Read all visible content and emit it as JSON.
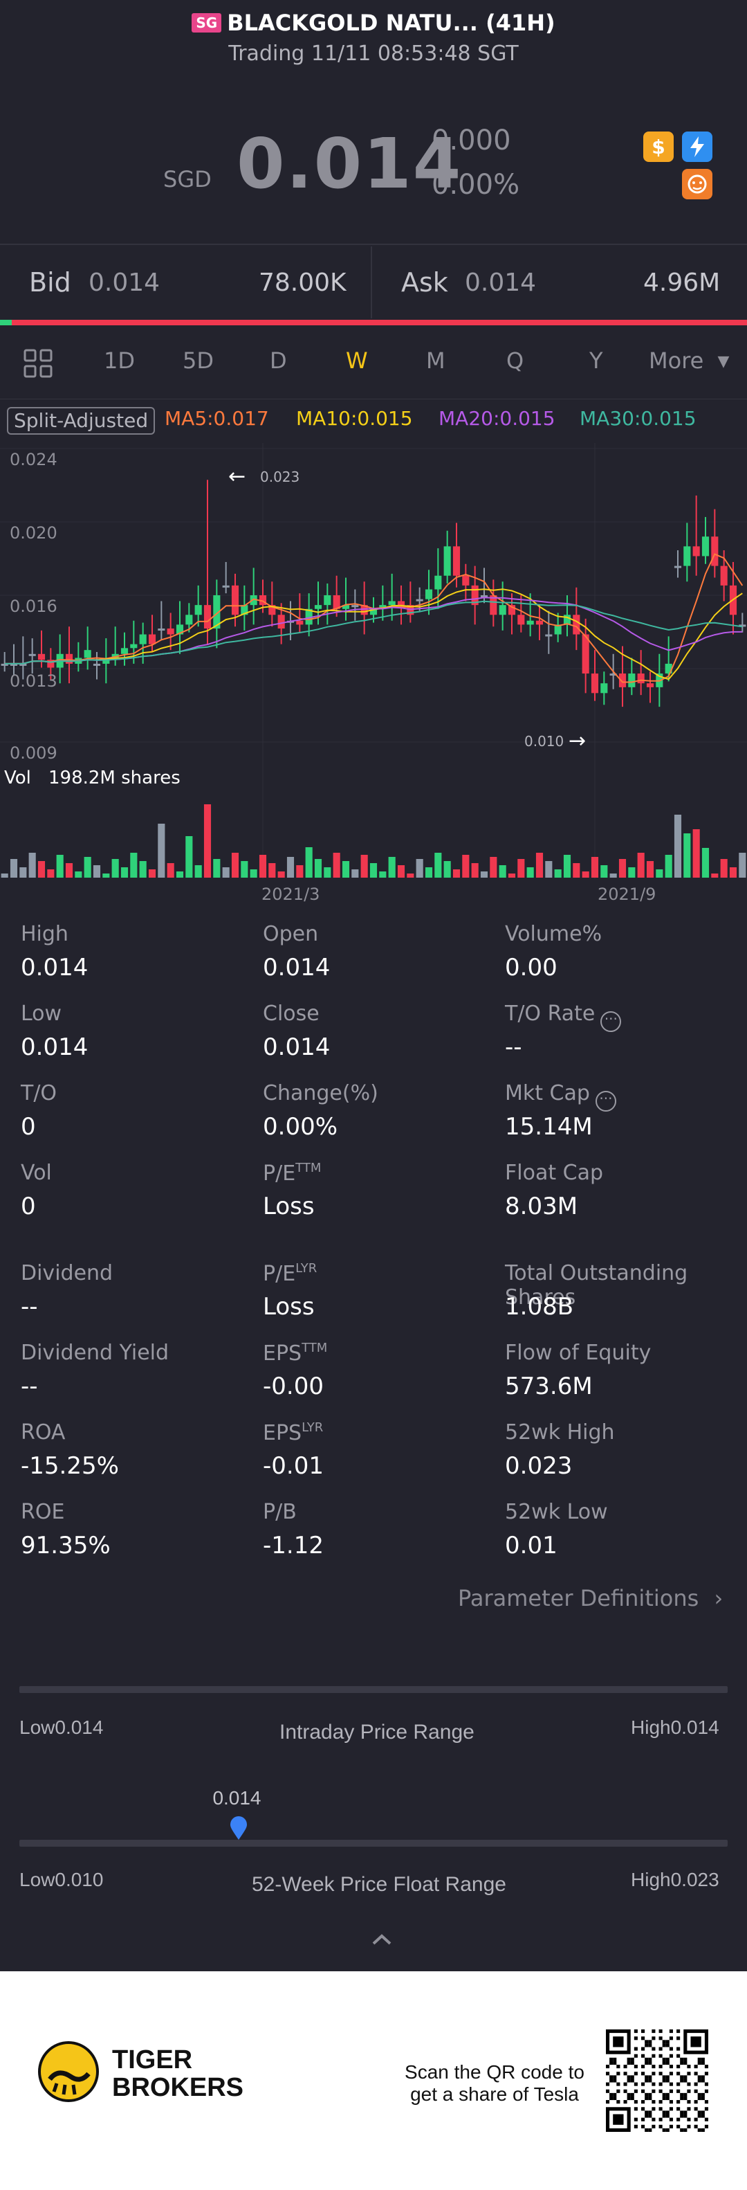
{
  "header": {
    "market_badge": "SG",
    "title": "BLACKGOLD NATU... (41H)",
    "subtitle": "Trading 11/11 08:53:48 SGT"
  },
  "quote": {
    "currency": "SGD",
    "price": "0.014",
    "change": "0.000",
    "change_pct": "0.00%"
  },
  "bid_ask": {
    "bid_label": "Bid",
    "bid_price": "0.014",
    "bid_size": "78.00K",
    "ask_label": "Ask",
    "ask_price": "0.014",
    "ask_size": "4.96M",
    "bid_ratio": 0.016
  },
  "tabs": [
    "1D",
    "5D",
    "D",
    "W",
    "M",
    "Q",
    "Y",
    "More"
  ],
  "active_tab": "W",
  "indicators": {
    "split_label": "Split-Adjusted",
    "ma5": "MA5:0.017",
    "ma10": "MA10:0.015",
    "ma20": "MA20:0.015",
    "ma30": "MA30:0.015",
    "colors": {
      "ma5": "#ff7a3d",
      "ma10": "#f5d018",
      "ma20": "#b65ae8",
      "ma30": "#3fb8a0",
      "up": "#2fd27a",
      "down": "#f0384f",
      "flat": "#8f9aa8"
    }
  },
  "chart_data": {
    "type": "candlestick",
    "y_ticks": [
      "0.024",
      "0.020",
      "0.016",
      "0.013",
      "0.009"
    ],
    "ylim": [
      0.009,
      0.024
    ],
    "max_annotation": "0.023",
    "min_annotation": "0.010",
    "x_ticks": [
      "2021/3",
      "2021/9"
    ],
    "volume_label": "Vol",
    "volume_value": "198.2M shares"
  },
  "stats": {
    "col1": [
      {
        "label": "High",
        "value": "0.014"
      },
      {
        "label": "Low",
        "value": "0.014"
      },
      {
        "label": "T/O",
        "value": "0"
      },
      {
        "label": "Vol",
        "value": "0"
      },
      {
        "label": "Dividend",
        "value": "--"
      },
      {
        "label": "Dividend Yield",
        "value": "--"
      },
      {
        "label": "ROA",
        "value": "-15.25%"
      },
      {
        "label": "ROE",
        "value": "91.35%"
      }
    ],
    "col2": [
      {
        "label": "Open",
        "value": "0.014"
      },
      {
        "label": "Close",
        "value": "0.014"
      },
      {
        "label": "Change(%)",
        "value": "0.00%"
      },
      {
        "label": "P/E",
        "sup": "TTM",
        "value": "Loss"
      },
      {
        "label": "P/E",
        "sup": "LYR",
        "value": "Loss"
      },
      {
        "label": "EPS",
        "sup": "TTM",
        "value": "-0.00"
      },
      {
        "label": "EPS",
        "sup": "LYR",
        "value": "-0.01"
      },
      {
        "label": "P/B",
        "value": "-1.12"
      }
    ],
    "col3": [
      {
        "label": "Volume%",
        "value": "0.00"
      },
      {
        "label": "T/O Rate",
        "value": "--"
      },
      {
        "label": "Mkt Cap",
        "value": "15.14M"
      },
      {
        "label": "Float Cap",
        "value": "8.03M"
      },
      {
        "label": "Total Outstanding Shares",
        "value": "1.08B"
      },
      {
        "label": "Flow of Equity",
        "value": "573.6M"
      },
      {
        "label": "52wk High",
        "value": "0.023"
      },
      {
        "label": "52wk Low",
        "value": "0.01"
      }
    ],
    "param_link": "Parameter Definitions"
  },
  "intraday_range": {
    "low_label": "Low",
    "low": "0.014",
    "title": "Intraday Price Range",
    "high_label": "High",
    "high": "0.014"
  },
  "week52_range": {
    "marker_value": "0.014",
    "low_label": "Low",
    "low": "0.010",
    "title": "52-Week Price Float Range",
    "high_label": "High",
    "high": "0.023",
    "marker_fraction": 0.31
  },
  "footer": {
    "brand_line1": "TIGER",
    "brand_line2": "BROKERS",
    "scan_line1": "Scan the QR code to",
    "scan_line2": "get a share of Tesla"
  }
}
